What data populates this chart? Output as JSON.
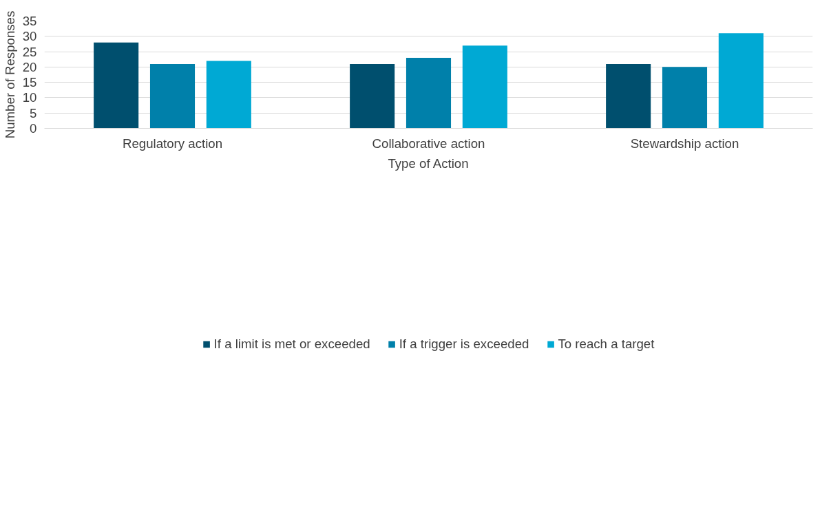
{
  "chart_data": {
    "type": "bar",
    "xlabel": "Type of Action",
    "ylabel": "Number of Responses",
    "categories": [
      "Regulatory action",
      "Collaborative action",
      "Stewardship action"
    ],
    "series": [
      {
        "name": "If a limit is met or exceeded",
        "color": "#004f6e",
        "values": [
          28,
          21,
          21
        ]
      },
      {
        "name": "If a trigger is exceeded",
        "color": "#0080aa",
        "values": [
          21,
          23,
          20
        ]
      },
      {
        "name": "To reach a target",
        "color": "#00a9d4",
        "values": [
          22,
          27,
          31
        ]
      }
    ],
    "ylim": [
      0,
      35
    ],
    "yticks": [
      0,
      5,
      10,
      15,
      20,
      25,
      30,
      35
    ],
    "grid": "y",
    "legend": "bottom"
  }
}
